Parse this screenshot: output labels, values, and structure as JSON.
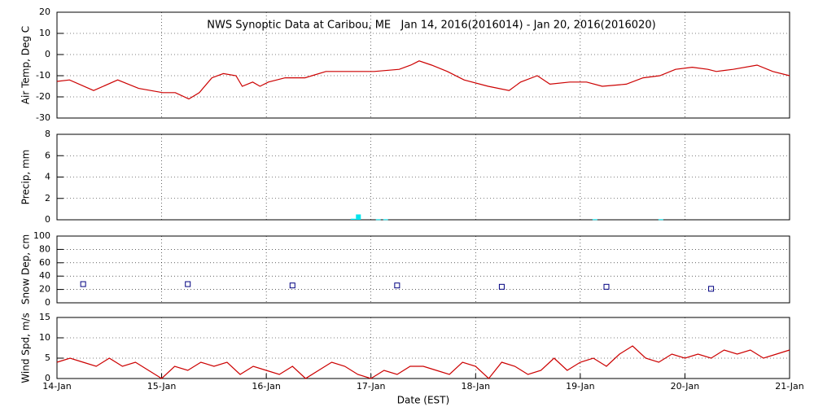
{
  "chart_data": [
    {
      "type": "line",
      "title": "NWS Synoptic Data at Caribou, ME   Jan 14, 2016(2016014) - Jan 20, 2016(2016020)",
      "ylabel": "Air Temp, Deg C",
      "xlim": [
        0,
        7
      ],
      "ylim": [
        -30,
        20
      ],
      "yticks": [
        20,
        10,
        0,
        -10,
        -20,
        -30
      ],
      "grid": true,
      "x": [
        0,
        0.12,
        0.35,
        0.58,
        0.78,
        1.01,
        1.13,
        1.26,
        1.36,
        1.48,
        1.59,
        1.71,
        1.77,
        1.87,
        1.94,
        2.02,
        2.18,
        2.37,
        2.57,
        2.8,
        3.03,
        3.27,
        3.38,
        3.46,
        3.58,
        3.73,
        3.89,
        4.12,
        4.32,
        4.43,
        4.59,
        4.71,
        4.9,
        5.06,
        5.21,
        5.44,
        5.6,
        5.76,
        5.91,
        6.07,
        6.22,
        6.3,
        6.46,
        6.69,
        6.84,
        7
      ],
      "series": [
        {
          "color": "#cc0000",
          "values": [
            -12.7,
            -12,
            -17,
            -12,
            -16,
            -18,
            -18,
            -21,
            -18,
            -11,
            -9,
            -10,
            -15,
            -13,
            -15,
            -13,
            -11,
            -11,
            -8,
            -8,
            -8,
            -7,
            -5,
            -3,
            -5,
            -8,
            -12,
            -15,
            -17,
            -13,
            -10,
            -14,
            -13,
            -13,
            -15,
            -14,
            -11,
            -10,
            -7,
            -6,
            -7,
            -8,
            -7,
            -5,
            -8,
            -10
          ]
        }
      ]
    },
    {
      "type": "bar",
      "ylabel": "Precip, mm",
      "xlim": [
        0,
        7
      ],
      "ylim": [
        0,
        8
      ],
      "yticks": [
        0,
        2,
        4,
        6,
        8
      ],
      "grid": true,
      "x": [
        2.83,
        2.88,
        3.07,
        3.14,
        5.14,
        5.77
      ],
      "series": [
        {
          "color": "#00e5ee",
          "values": [
            0.1,
            0.5,
            0.05,
            0.05,
            0.05,
            0.05
          ]
        }
      ]
    },
    {
      "type": "scatter",
      "ylabel": "Snow Dep, cm",
      "xlim": [
        0,
        7
      ],
      "ylim": [
        0,
        100
      ],
      "yticks": [
        0,
        20,
        40,
        60,
        80,
        100
      ],
      "grid": true,
      "x": [
        0.25,
        1.25,
        2.25,
        3.25,
        4.25,
        5.25,
        6.25
      ],
      "series": [
        {
          "color": "#000080",
          "values": [
            28,
            28,
            26,
            26,
            24,
            24,
            21
          ]
        }
      ]
    },
    {
      "type": "line",
      "ylabel": "Wind Spd, m/s",
      "xlabel": "Date (EST)",
      "xlim": [
        0,
        7
      ],
      "ylim": [
        0,
        15
      ],
      "yticks": [
        0,
        5,
        10,
        15
      ],
      "grid": true,
      "xticks": [
        {
          "value": 0,
          "label": "14-Jan"
        },
        {
          "value": 1,
          "label": "15-Jan"
        },
        {
          "value": 2,
          "label": "16-Jan"
        },
        {
          "value": 3,
          "label": "17-Jan"
        },
        {
          "value": 4,
          "label": "18-Jan"
        },
        {
          "value": 5,
          "label": "19-Jan"
        },
        {
          "value": 6,
          "label": "20-Jan"
        },
        {
          "value": 7,
          "label": "21-Jan"
        }
      ],
      "x": [
        0,
        0.125,
        0.25,
        0.375,
        0.5,
        0.625,
        0.75,
        0.875,
        1,
        1.125,
        1.25,
        1.375,
        1.5,
        1.625,
        1.75,
        1.875,
        2,
        2.125,
        2.25,
        2.375,
        2.5,
        2.625,
        2.75,
        2.875,
        3,
        3.125,
        3.25,
        3.375,
        3.5,
        3.625,
        3.75,
        3.875,
        4,
        4.125,
        4.25,
        4.375,
        4.5,
        4.625,
        4.75,
        4.875,
        5,
        5.125,
        5.25,
        5.375,
        5.5,
        5.625,
        5.75,
        5.875,
        6,
        6.125,
        6.25,
        6.375,
        6.5,
        6.625,
        6.75,
        6.875,
        7
      ],
      "series": [
        {
          "color": "#cc0000",
          "values": [
            4,
            5,
            4,
            3,
            5,
            3,
            4,
            2,
            0,
            3,
            2,
            4,
            3,
            4,
            1,
            3,
            2,
            1,
            3,
            0,
            2,
            4,
            3,
            1,
            0,
            2,
            1,
            3,
            3,
            2,
            1,
            4,
            3,
            0,
            4,
            3,
            1,
            2,
            5,
            2,
            4,
            5,
            3,
            6,
            8,
            5,
            4,
            6,
            5,
            6,
            5,
            7,
            6,
            7,
            5,
            6,
            7
          ]
        }
      ]
    }
  ]
}
